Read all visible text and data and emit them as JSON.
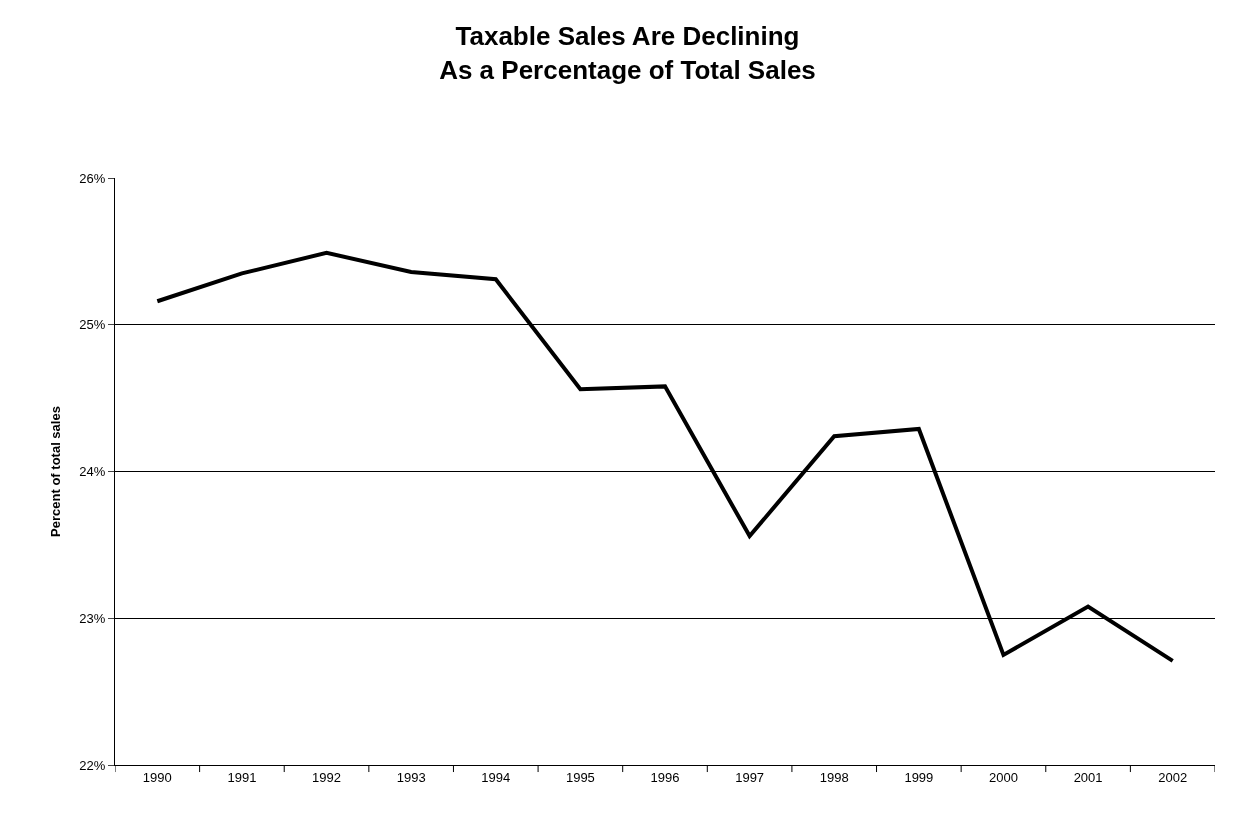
{
  "chart_data": {
    "type": "line",
    "title": "Taxable Sales Are Declining\nAs a Percentage of Total Sales",
    "ylabel": "Percent of total sales",
    "categories": [
      "1990",
      "1991",
      "1992",
      "1993",
      "1994",
      "1995",
      "1996",
      "1997",
      "1998",
      "1999",
      "2000",
      "2001",
      "2002"
    ],
    "series": [
      {
        "color": "#000000",
        "values": [
          25.16,
          25.35,
          25.49,
          25.36,
          25.31,
          24.56,
          24.58,
          23.56,
          24.24,
          24.29,
          22.75,
          23.08,
          22.71
        ]
      }
    ],
    "ylim": [
      22,
      26
    ],
    "yticks": [
      {
        "value": 22,
        "label": "22%"
      },
      {
        "value": 23,
        "label": "23%"
      },
      {
        "value": 24,
        "label": "24%"
      },
      {
        "value": 25,
        "label": "25%"
      },
      {
        "value": 26,
        "label": "26%"
      }
    ],
    "grid": "y",
    "marker": "none",
    "line_style": "solid"
  }
}
